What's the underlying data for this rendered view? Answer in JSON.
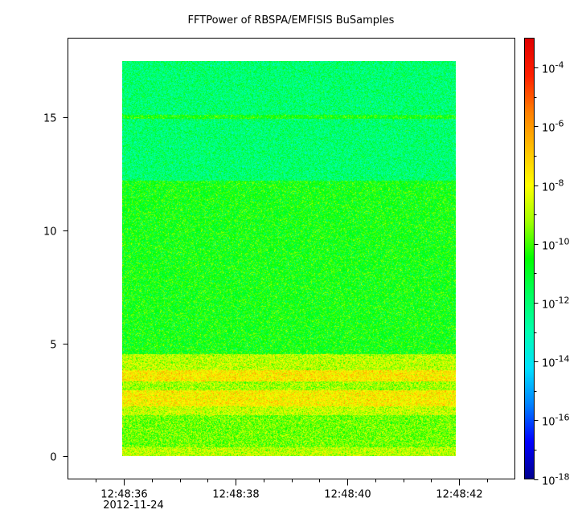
{
  "chart_data": {
    "type": "heatmap",
    "title": "FFTPower of RBSPA/EMFISIS  BuSamples",
    "xlabel": "",
    "ylabel": "",
    "x": {
      "ticks": [
        "12:48:36",
        "12:48:38",
        "12:48:40",
        "12:48:42"
      ],
      "tick_values_s": [
        36,
        38,
        40,
        42
      ],
      "date_label": "2012-11-24",
      "range_s": [
        35.0,
        43.0
      ]
    },
    "y": {
      "ticks": [
        0,
        5,
        10,
        15
      ],
      "range": [
        -1.0,
        18.5
      ]
    },
    "colorbar": {
      "scale": "log",
      "range": [
        1e-18,
        0.001
      ],
      "tick_labels": [
        {
          "base": "10",
          "exp": "-4"
        },
        {
          "base": "10",
          "exp": "-6"
        },
        {
          "base": "10",
          "exp": "-8"
        },
        {
          "base": "10",
          "exp": "-10"
        },
        {
          "base": "10",
          "exp": "-12"
        },
        {
          "base": "10",
          "exp": "-14"
        },
        {
          "base": "10",
          "exp": "-16"
        },
        {
          "base": "10",
          "exp": "-18"
        }
      ],
      "tick_exponents": [
        -4,
        -6,
        -8,
        -10,
        -12,
        -14,
        -16,
        -18
      ],
      "palette": [
        "#00008f",
        "#0000ff",
        "#0080ff",
        "#00e0ff",
        "#00ffb0",
        "#00ff60",
        "#00ff00",
        "#9fff00",
        "#ffff00",
        "#ffc000",
        "#ff7f00",
        "#ff2000",
        "#e00000"
      ]
    },
    "data_extent": {
      "x_start_s": 35.97,
      "x_end_s": 41.94,
      "y_start": 0.0,
      "y_end": 17.5
    },
    "bands": [
      {
        "y_from": 0.0,
        "y_to": 0.4,
        "log_power": -8.8
      },
      {
        "y_from": 0.4,
        "y_to": 1.8,
        "log_power": -9.6
      },
      {
        "y_from": 1.8,
        "y_to": 2.2,
        "log_power": -8.7
      },
      {
        "y_from": 2.2,
        "y_to": 2.9,
        "log_power": -7.7
      },
      {
        "y_from": 2.9,
        "y_to": 3.3,
        "log_power": -9.1
      },
      {
        "y_from": 3.3,
        "y_to": 3.8,
        "log_power": -7.6
      },
      {
        "y_from": 3.8,
        "y_to": 4.5,
        "log_power": -8.8
      },
      {
        "y_from": 4.5,
        "y_to": 12.2,
        "log_power": -10.6
      },
      {
        "y_from": 12.2,
        "y_to": 17.5,
        "log_power": -12.0
      },
      {
        "y_from": 14.95,
        "y_to": 15.1,
        "log_power": -10.6
      }
    ]
  }
}
